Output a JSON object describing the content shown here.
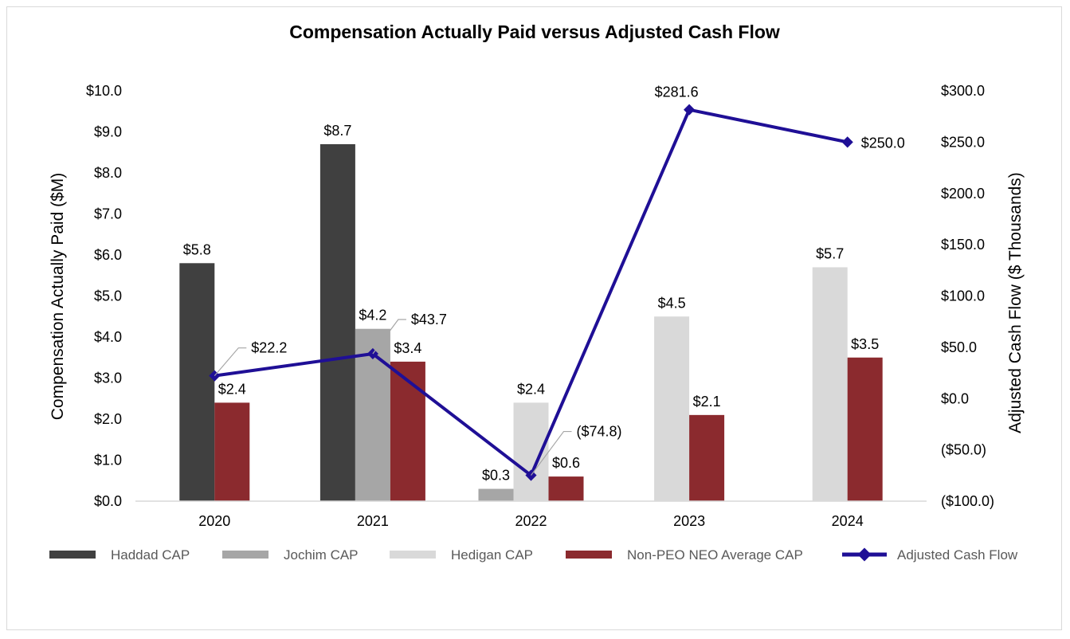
{
  "chart_data": {
    "type": "bar",
    "title": "Compensation Actually Paid versus Adjusted Cash Flow",
    "categories": [
      "2020",
      "2021",
      "2022",
      "2023",
      "2024"
    ],
    "ylabel": "Compensation Actually Paid ($M)",
    "y2label": "Adjusted Cash Flow ($ Thousands)",
    "ylim": [
      0,
      10
    ],
    "y2lim": [
      -100,
      300
    ],
    "yticks": [
      "$0.0",
      "$1.0",
      "$2.0",
      "$3.0",
      "$4.0",
      "$5.0",
      "$6.0",
      "$7.0",
      "$8.0",
      "$9.0",
      "$10.0"
    ],
    "y2ticks": [
      "($100.0)",
      "($50.0)",
      "$0.0",
      "$50.0",
      "$100.0",
      "$150.0",
      "$200.0",
      "$250.0",
      "$300.0"
    ],
    "series": [
      {
        "name": "Haddad CAP",
        "kind": "bar",
        "color": "#404040",
        "values": [
          5.8,
          8.7,
          null,
          null,
          null
        ],
        "labels": [
          "$5.8",
          "$8.7",
          "",
          "",
          ""
        ]
      },
      {
        "name": "Jochim CAP",
        "kind": "bar",
        "color": "#a6a6a6",
        "values": [
          null,
          4.2,
          0.3,
          null,
          null
        ],
        "labels": [
          "",
          "$4.2",
          "$0.3",
          "",
          ""
        ]
      },
      {
        "name": "Hedigan CAP",
        "kind": "bar",
        "color": "#d9d9d9",
        "values": [
          null,
          null,
          2.4,
          4.5,
          5.7
        ],
        "labels": [
          "",
          "",
          "$2.4",
          "$4.5",
          "$5.7"
        ]
      },
      {
        "name": "Non-PEO NEO Average CAP",
        "kind": "bar",
        "color": "#8b2a2e",
        "values": [
          2.4,
          3.4,
          0.6,
          2.1,
          3.5
        ],
        "labels": [
          "$2.4",
          "$3.4",
          "$0.6",
          "$2.1",
          "$3.5"
        ]
      },
      {
        "name": "Adjusted Cash Flow",
        "kind": "line",
        "axis": "y2",
        "color": "#1f0f96",
        "values": [
          22.2,
          43.7,
          -74.8,
          281.6,
          250.0
        ],
        "labels": [
          "$22.2",
          "$43.7",
          "($74.8)",
          "$281.6",
          "$250.0"
        ]
      }
    ],
    "legend_position": "bottom"
  }
}
